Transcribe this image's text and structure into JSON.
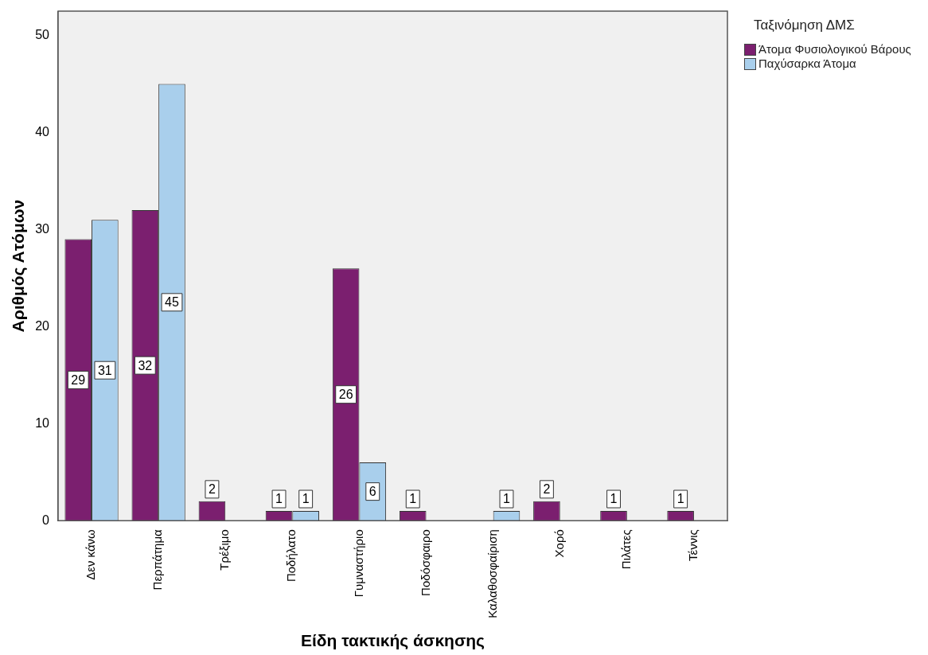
{
  "chart_data": {
    "type": "bar",
    "xlabel": "Είδη τακτικής άσκησης",
    "ylabel": "Αριθμός Ατόμων",
    "legend_title": "Ταξινόμηση ΔΜΣ",
    "categories": [
      "Δεν κάνω",
      "Περπάτημα",
      "Τρέξιμο",
      "Ποδήλατο",
      "Γυμναστήριο",
      "Ποδόσφαιρο",
      "Καλαθοσφαίριση",
      "Χορό",
      "Πιλάτες",
      "Τέννις"
    ],
    "series": [
      {
        "name": "Άτομα Φυσιολογικού Βάρους",
        "color": "#7b1f6f",
        "values": [
          29,
          32,
          2,
          1,
          26,
          1,
          null,
          2,
          1,
          1
        ]
      },
      {
        "name": "Παχύσαρκα Άτομα",
        "color": "#a9cfec",
        "values": [
          31,
          45,
          null,
          1,
          6,
          null,
          1,
          null,
          null,
          null
        ]
      }
    ],
    "ylim": [
      0,
      52.5
    ],
    "yticks": [
      0,
      10,
      20,
      30,
      40,
      50
    ],
    "grid": false,
    "legend": "right",
    "data_labels": true
  }
}
